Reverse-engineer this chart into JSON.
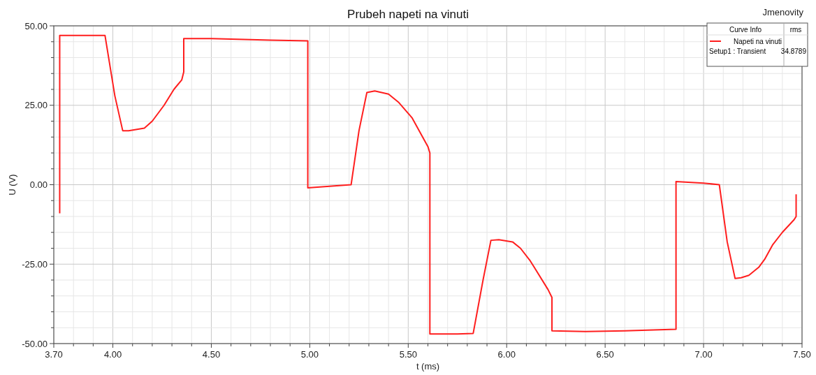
{
  "chart_data": {
    "type": "line",
    "title": "Prubeh napeti na vinuti",
    "xlabel": "t (ms)",
    "ylabel": "U (V)",
    "annotations": [
      "Jmenovity",
      "Curve Info",
      "rms",
      "Setup1 : Transient",
      "34.8789"
    ],
    "xlim": [
      3.7,
      7.5
    ],
    "ylim": [
      -50,
      50
    ],
    "xticks": [
      {
        "value": 3.7,
        "label": "3.70"
      },
      {
        "value": 3.8,
        "label": null
      },
      {
        "value": 3.9,
        "label": null
      },
      {
        "value": 4.0,
        "label": "4.00"
      },
      {
        "value": 4.1,
        "label": null
      },
      {
        "value": 4.2,
        "label": null
      },
      {
        "value": 4.3,
        "label": null
      },
      {
        "value": 4.4,
        "label": null
      },
      {
        "value": 4.5,
        "label": "4.50"
      },
      {
        "value": 4.6,
        "label": null
      },
      {
        "value": 4.7,
        "label": null
      },
      {
        "value": 4.8,
        "label": null
      },
      {
        "value": 4.9,
        "label": null
      },
      {
        "value": 5.0,
        "label": "5.00"
      },
      {
        "value": 5.1,
        "label": null
      },
      {
        "value": 5.2,
        "label": null
      },
      {
        "value": 5.3,
        "label": null
      },
      {
        "value": 5.4,
        "label": null
      },
      {
        "value": 5.5,
        "label": "5.50"
      },
      {
        "value": 5.6,
        "label": null
      },
      {
        "value": 5.7,
        "label": null
      },
      {
        "value": 5.8,
        "label": null
      },
      {
        "value": 5.9,
        "label": null
      },
      {
        "value": 6.0,
        "label": "6.00"
      },
      {
        "value": 6.1,
        "label": null
      },
      {
        "value": 6.2,
        "label": null
      },
      {
        "value": 6.3,
        "label": null
      },
      {
        "value": 6.4,
        "label": null
      },
      {
        "value": 6.5,
        "label": "6.50"
      },
      {
        "value": 6.6,
        "label": null
      },
      {
        "value": 6.7,
        "label": null
      },
      {
        "value": 6.8,
        "label": null
      },
      {
        "value": 6.9,
        "label": null
      },
      {
        "value": 7.0,
        "label": "7.00"
      },
      {
        "value": 7.1,
        "label": null
      },
      {
        "value": 7.2,
        "label": null
      },
      {
        "value": 7.3,
        "label": null
      },
      {
        "value": 7.4,
        "label": null
      },
      {
        "value": 7.5,
        "label": "7.50"
      }
    ],
    "yticks": [
      {
        "value": -50,
        "label": "-50.00"
      },
      {
        "value": -45,
        "label": null
      },
      {
        "value": -40,
        "label": null
      },
      {
        "value": -35,
        "label": null
      },
      {
        "value": -30,
        "label": null
      },
      {
        "value": -25,
        "label": "-25.00"
      },
      {
        "value": -20,
        "label": null
      },
      {
        "value": -15,
        "label": null
      },
      {
        "value": -10,
        "label": null
      },
      {
        "value": -5,
        "label": null
      },
      {
        "value": 0,
        "label": "0.00"
      },
      {
        "value": 5,
        "label": null
      },
      {
        "value": 10,
        "label": null
      },
      {
        "value": 15,
        "label": null
      },
      {
        "value": 20,
        "label": null
      },
      {
        "value": 25,
        "label": "25.00"
      },
      {
        "value": 30,
        "label": null
      },
      {
        "value": 35,
        "label": null
      },
      {
        "value": 40,
        "label": null
      },
      {
        "value": 45,
        "label": null
      },
      {
        "value": 50,
        "label": "50.00"
      }
    ],
    "grid": true,
    "legend": "top right",
    "line_style": "solid",
    "series": [
      {
        "name": "Napeti na vinuti",
        "color": "#ff1e1e",
        "x": [
          3.73,
          3.73,
          3.96,
          4.01,
          4.05,
          4.08,
          4.16,
          4.2,
          4.26,
          4.31,
          4.35,
          4.36,
          4.36,
          4.5,
          4.8,
          4.99,
          4.99,
          5.1,
          5.21,
          5.25,
          5.29,
          5.33,
          5.4,
          5.45,
          5.52,
          5.6,
          5.61,
          5.61,
          5.75,
          5.83,
          5.88,
          5.92,
          5.96,
          6.03,
          6.07,
          6.12,
          6.21,
          6.23,
          6.23,
          6.4,
          6.6,
          6.86,
          6.86,
          7.0,
          7.08,
          7.12,
          7.16,
          7.19,
          7.23,
          7.28,
          7.31,
          7.35,
          7.4,
          7.46,
          7.47,
          7.47
        ],
        "values": [
          -9,
          47,
          47,
          28,
          17,
          17,
          17.8,
          20,
          25,
          30,
          33,
          35.5,
          46,
          46,
          45.5,
          45.3,
          -1,
          -0.5,
          0,
          17,
          29,
          29.5,
          28.5,
          26,
          21,
          12,
          10,
          -47,
          -47,
          -46.8,
          -30,
          -17.5,
          -17.3,
          -18,
          -20,
          -24,
          -33,
          -35.5,
          -46,
          -46.2,
          -46,
          -45.5,
          1,
          0.5,
          0,
          -18,
          -29.5,
          -29.3,
          -28.5,
          -26,
          -23.5,
          -19,
          -15,
          -11,
          -10,
          -3
        ]
      }
    ]
  }
}
